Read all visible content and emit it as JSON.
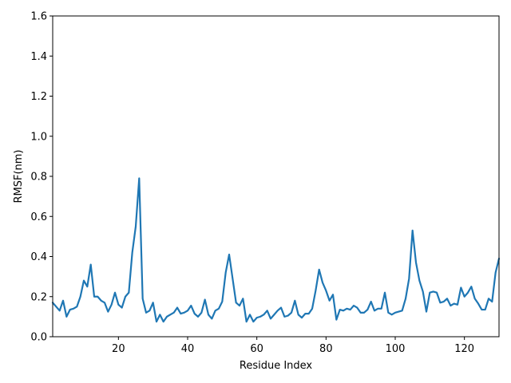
{
  "chart_data": {
    "type": "line",
    "title": "",
    "xlabel": "Residue Index",
    "ylabel": "RMSF(nm)",
    "xlim": [
      1,
      130
    ],
    "ylim": [
      0,
      1.6
    ],
    "xticks": [
      20,
      40,
      60,
      80,
      100,
      120
    ],
    "yticks": [
      0.0,
      0.2,
      0.4,
      0.6,
      0.8,
      1.0,
      1.2,
      1.4,
      1.6
    ],
    "ytick_labels": [
      "0.0",
      "0.2",
      "0.4",
      "0.6",
      "0.8",
      "1.0",
      "1.2",
      "1.4",
      "1.6"
    ],
    "grid": false,
    "color": "#1f77b4",
    "x_start": 1,
    "x_step": 1,
    "values": [
      0.17,
      0.15,
      0.13,
      0.18,
      0.1,
      0.135,
      0.14,
      0.15,
      0.2,
      0.28,
      0.25,
      0.36,
      0.2,
      0.2,
      0.18,
      0.17,
      0.125,
      0.16,
      0.22,
      0.16,
      0.145,
      0.2,
      0.22,
      0.42,
      0.55,
      0.79,
      0.19,
      0.12,
      0.13,
      0.17,
      0.075,
      0.11,
      0.075,
      0.1,
      0.11,
      0.12,
      0.145,
      0.115,
      0.12,
      0.13,
      0.155,
      0.115,
      0.1,
      0.12,
      0.185,
      0.11,
      0.09,
      0.13,
      0.14,
      0.175,
      0.32,
      0.41,
      0.29,
      0.17,
      0.155,
      0.19,
      0.075,
      0.11,
      0.075,
      0.095,
      0.1,
      0.11,
      0.13,
      0.09,
      0.11,
      0.13,
      0.145,
      0.1,
      0.105,
      0.12,
      0.18,
      0.11,
      0.095,
      0.115,
      0.115,
      0.14,
      0.23,
      0.335,
      0.27,
      0.23,
      0.18,
      0.21,
      0.085,
      0.135,
      0.13,
      0.14,
      0.135,
      0.155,
      0.145,
      0.12,
      0.12,
      0.135,
      0.175,
      0.13,
      0.14,
      0.14,
      0.22,
      0.12,
      0.11,
      0.12,
      0.125,
      0.13,
      0.19,
      0.29,
      0.53,
      0.37,
      0.28,
      0.225,
      0.125,
      0.22,
      0.225,
      0.22,
      0.17,
      0.175,
      0.19,
      0.155,
      0.165,
      0.16,
      0.245,
      0.2,
      0.22,
      0.25,
      0.19,
      0.165,
      0.135,
      0.135,
      0.19,
      0.175,
      0.32,
      0.39
    ]
  }
}
